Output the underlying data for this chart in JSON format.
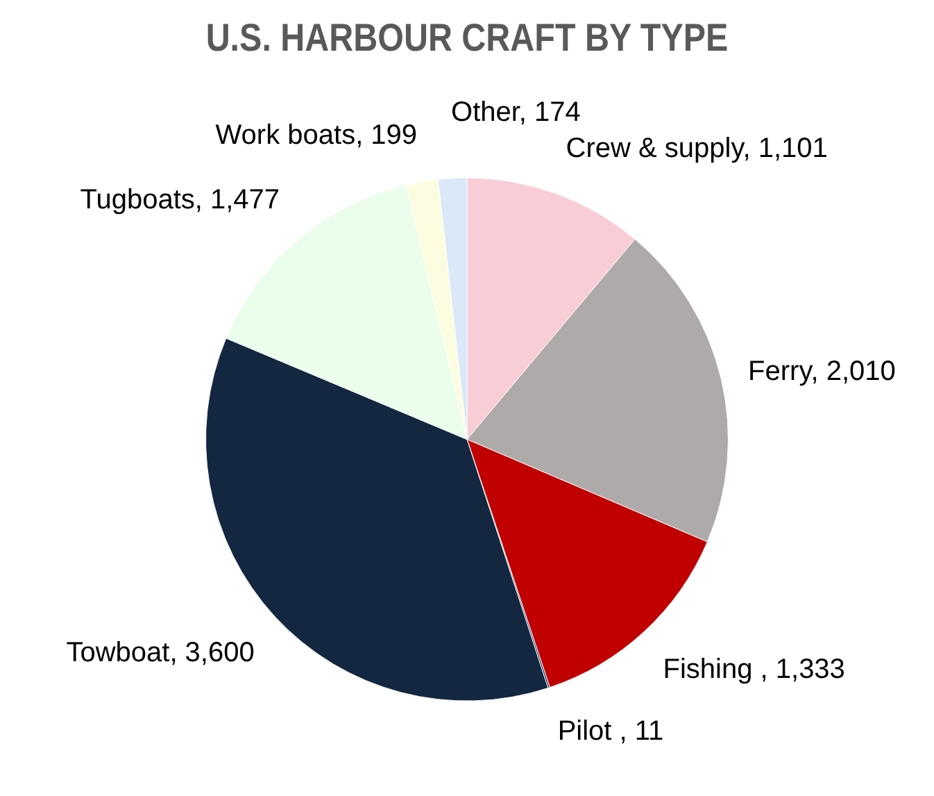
{
  "chart_data": {
    "type": "pie",
    "title": "U.S. HARBOUR CRAFT BY TYPE",
    "categories": [
      "Crew & supply",
      "Ferry",
      "Fishing ",
      "Pilot ",
      "Towboat",
      "Tugboats",
      "Work boats",
      "Other"
    ],
    "value_labels": [
      "1,101",
      "2,010",
      "1,333",
      "11",
      "3,600",
      "1,477",
      "199",
      "174"
    ],
    "values": [
      1101,
      2010,
      1333,
      11,
      3600,
      1477,
      199,
      174
    ],
    "colors": [
      "#f8cdd5",
      "#aeaaaa",
      "#c00000",
      "#1f3864",
      "#132740",
      "#ebfdeb",
      "#fcfde0",
      "#dae8f8"
    ],
    "legend": false
  }
}
